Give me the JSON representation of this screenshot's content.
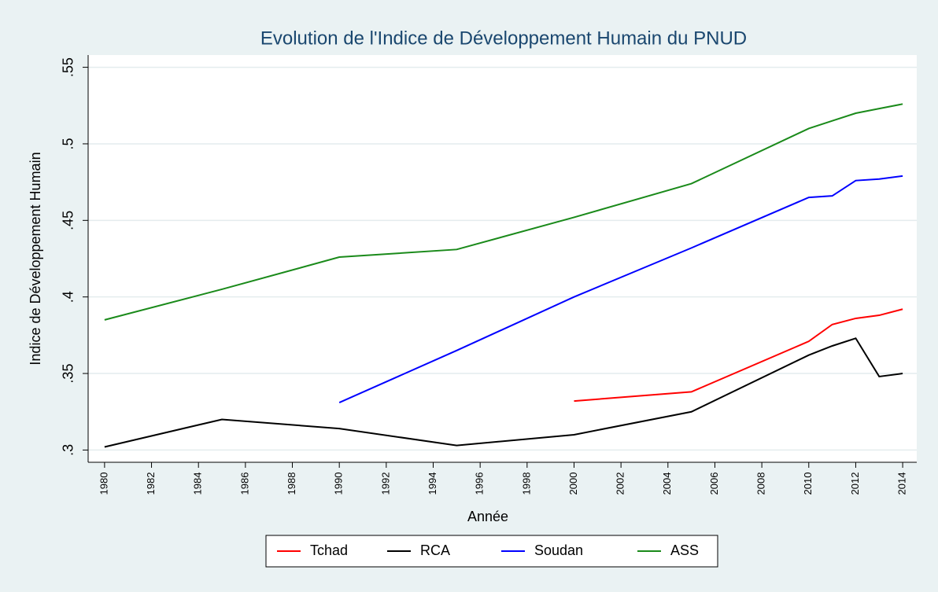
{
  "chart_data": {
    "type": "line",
    "title": "Evolution de l'Indice de Développement Humain du PNUD",
    "x_label": "Année",
    "y_label": "Indice de Développement Humain",
    "x": [
      1980,
      1985,
      1990,
      1995,
      2000,
      2005,
      2010,
      2011,
      2012,
      2013,
      2014
    ],
    "series": [
      {
        "name": "Tchad",
        "color": "#ff0000",
        "values": [
          null,
          null,
          null,
          null,
          0.332,
          0.338,
          0.371,
          0.382,
          0.386,
          0.388,
          0.392
        ]
      },
      {
        "name": "RCA",
        "color": "#000000",
        "values": [
          0.302,
          0.32,
          0.314,
          0.303,
          0.31,
          0.325,
          0.362,
          0.368,
          0.373,
          0.348,
          0.35
        ]
      },
      {
        "name": "Soudan",
        "color": "#0000ff",
        "values": [
          null,
          null,
          0.331,
          0.365,
          0.4,
          0.432,
          0.465,
          0.466,
          0.476,
          0.477,
          0.479
        ]
      },
      {
        "name": "ASS",
        "color": "#1a8a1a",
        "values": [
          0.385,
          0.405,
          0.426,
          0.431,
          0.452,
          0.474,
          0.51,
          0.515,
          0.52,
          0.523,
          0.526
        ]
      }
    ],
    "xlim": [
      1979.3,
      2014.6
    ],
    "xticks": [
      1980,
      1982,
      1984,
      1986,
      1988,
      1990,
      1992,
      1994,
      1996,
      1998,
      2000,
      2002,
      2004,
      2006,
      2008,
      2010,
      2012,
      2014
    ],
    "ylim": [
      0.292,
      0.558
    ],
    "yticks": [
      {
        "value": 0.3,
        "label": ".3"
      },
      {
        "value": 0.35,
        "label": ".35"
      },
      {
        "value": 0.4,
        "label": ".4"
      },
      {
        "value": 0.45,
        "label": ".45"
      },
      {
        "value": 0.5,
        "label": ".5"
      },
      {
        "value": 0.55,
        "label": ".55"
      }
    ],
    "grid": true,
    "legend": "bottom"
  }
}
